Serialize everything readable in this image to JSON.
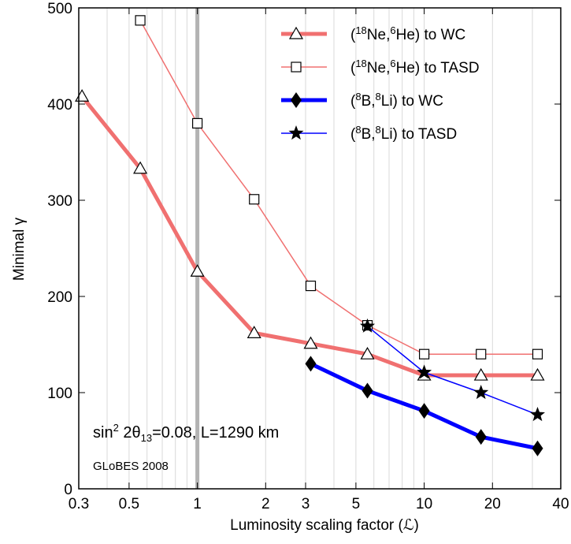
{
  "chart_data": {
    "type": "line",
    "xlabel": "Luminosity scaling factor (ℒ)",
    "ylabel": "Minimal γ",
    "x_scale": "log",
    "xlim": [
      0.3,
      40
    ],
    "ylim": [
      0,
      500
    ],
    "x_ticks": [
      0.3,
      0.5,
      1,
      2,
      3,
      5,
      10,
      20,
      40
    ],
    "x_tick_labels": [
      "0.3",
      "0.5",
      "1",
      "2",
      "3",
      "5",
      "10",
      "20",
      "40"
    ],
    "y_ticks": [
      0,
      100,
      200,
      300,
      400,
      500
    ],
    "y_tick_labels": [
      "0",
      "100",
      "200",
      "300",
      "400",
      "500"
    ],
    "grid": "vertical lines at x ticks",
    "reference_line": {
      "x": 1,
      "color": "#b3b3b3"
    },
    "legend_position": "top-right",
    "series": [
      {
        "name": "(¹⁸Ne,⁶He) to WC",
        "color": "#f07070",
        "line_width": 5,
        "marker": "triangle-open",
        "points": [
          [
            0.31,
            408
          ],
          [
            0.56,
            333
          ],
          [
            1.0,
            226
          ],
          [
            1.78,
            162
          ],
          [
            3.16,
            151
          ],
          [
            5.62,
            140
          ],
          [
            10.0,
            118
          ],
          [
            17.8,
            118
          ],
          [
            31.6,
            118
          ]
        ]
      },
      {
        "name": "(¹⁸Ne,⁶He) to TASD",
        "color": "#f07070",
        "line_width": 1.5,
        "marker": "square-open",
        "points": [
          [
            0.56,
            487
          ],
          [
            1.0,
            380
          ],
          [
            1.78,
            301
          ],
          [
            3.16,
            211
          ],
          [
            5.62,
            170
          ],
          [
            10.0,
            140
          ],
          [
            17.8,
            140
          ],
          [
            31.6,
            140
          ]
        ]
      },
      {
        "name": "(⁸B,⁸Li) to WC",
        "color": "#0000ff",
        "line_width": 5,
        "marker": "diamond-filled",
        "points": [
          [
            3.16,
            130
          ],
          [
            5.62,
            102
          ],
          [
            10.0,
            81
          ],
          [
            17.8,
            54
          ],
          [
            31.6,
            42
          ]
        ]
      },
      {
        "name": "(⁸B,⁸Li) to TASD",
        "color": "#0000ff",
        "line_width": 1.5,
        "marker": "star-filled",
        "points": [
          [
            5.62,
            169
          ],
          [
            10.0,
            121
          ],
          [
            17.8,
            100
          ],
          [
            31.6,
            77
          ]
        ]
      }
    ],
    "annotations": [
      {
        "id": "params",
        "text": "sin²2θ₁₃=0.08, L=1290 km"
      },
      {
        "id": "globes",
        "text": "GLoBES 2008"
      }
    ]
  }
}
